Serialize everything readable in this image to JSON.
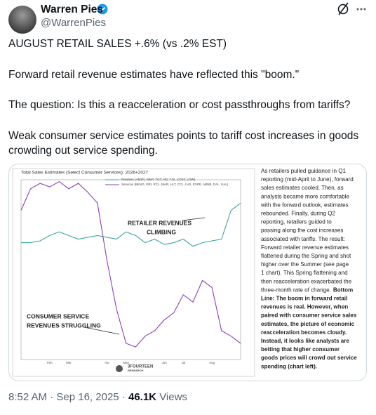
{
  "header": {
    "name": "Warren Pies",
    "handle": "@WarrenPies"
  },
  "tweet": {
    "paragraphs": [
      "AUGUST RETAIL SALES +.6% (vs .2% EST)",
      "Forward retail revenue estimates have reflected this \"boom.\"",
      "The question: Is this a reacceleration or cost passthroughs from tariffs?",
      "Weak consumer service estimates points to tariff cost increases in goods crowding out service spending."
    ]
  },
  "chart_data": {
    "type": "line",
    "title": "Total Sales Estimates (Select Consumer Services): 2026+2027",
    "categories": [
      null,
      null,
      null,
      "Feb",
      null,
      "Mar",
      null,
      null,
      null,
      "Apr",
      null,
      "May",
      null,
      null,
      null,
      "Jun",
      null,
      "Jul",
      null,
      null,
      "Aug",
      null,
      null,
      null
    ],
    "ylim": [
      0,
      100
    ],
    "series": [
      {
        "name": "Retailers (AMZN, WMT, TGT, HD, TJX, COST, LOW)",
        "color": "#3aa6a6",
        "values": [
          65,
          65,
          66,
          69,
          71,
          69,
          67,
          68,
          69,
          68,
          67,
          71,
          69,
          65,
          67,
          64,
          65,
          67,
          63,
          65,
          66,
          67,
          83,
          87
        ]
      },
      {
        "name": "Services (BKNG, DRI, RCL, MAR, HLT, CCL, LVS, EXPE, ABNB, DAL, UAL)",
        "color": "#8a3fb5",
        "values": [
          83,
          95,
          98,
          96,
          99,
          95,
          98,
          93,
          87,
          55,
          28,
          9,
          7,
          13,
          16,
          22,
          26,
          36,
          32,
          44,
          40,
          16,
          13,
          9
        ]
      }
    ],
    "annotations": [
      [
        "RETAILER REVENUES",
        "CLIMBING"
      ],
      [
        "CONSUMER SERVICE",
        "REVENUES STRUGGLING"
      ]
    ],
    "source": [
      "3FOURTEEN",
      "RESEARCH"
    ]
  },
  "side_note": {
    "lines": [
      [
        {
          "text": "As retailers pulled guidance in Q1",
          "bold": false
        }
      ],
      [
        {
          "text": "reporting (mid-April to June), forward",
          "bold": false
        }
      ],
      [
        {
          "text": "sales estimates cooled. Then, as",
          "bold": false
        }
      ],
      [
        {
          "text": "analysts became more comfortable",
          "bold": false
        }
      ],
      [
        {
          "text": "with the forward outlook, estimates",
          "bold": false
        }
      ],
      [
        {
          "text": "rebounded. Finally, during Q2",
          "bold": false
        }
      ],
      [
        {
          "text": "reporting, retailers guided to",
          "bold": false
        }
      ],
      [
        {
          "text": "passing along the cost increases",
          "bold": false
        }
      ],
      [
        {
          "text": "associated with tariffs. The result:",
          "bold": false
        }
      ],
      [
        {
          "text": "Forward retailer revenue estimates",
          "bold": false
        }
      ],
      [
        {
          "text": "flattened during the Spring and shot",
          "bold": false
        }
      ],
      [
        {
          "text": "higher over the Summer (see page",
          "bold": false
        }
      ],
      [
        {
          "text": "1 chart). This Spring flattening and",
          "bold": false
        }
      ],
      [
        {
          "text": "then reacceleration exacerbated the",
          "bold": false
        }
      ],
      [
        {
          "text": "three-month rate of change.",
          "bold": false
        },
        {
          "text": "Bottom",
          "bold": true
        }
      ],
      [
        {
          "text": "Line: The boom in forward retail",
          "bold": true
        }
      ],
      [
        {
          "text": "revenues is real. However, when",
          "bold": true
        }
      ],
      [
        {
          "text": "paired with consumer service sales",
          "bold": true
        }
      ],
      [
        {
          "text": "estimates, the picture of economic",
          "bold": true
        }
      ],
      [
        {
          "text": "reacceleration becomes cloudy.",
          "bold": true
        }
      ],
      [
        {
          "text": "Instead, it looks like analysts are",
          "bold": true
        }
      ],
      [
        {
          "text": "betting that higher consumer",
          "bold": true
        }
      ],
      [
        {
          "text": "goods prices will crowd out service",
          "bold": true
        }
      ],
      [
        {
          "text": "spending (chart left).",
          "bold": true
        }
      ]
    ]
  },
  "footer": {
    "time": "8:52 AM",
    "separator": "·",
    "date": "Sep 16, 2025",
    "views": "46.1K",
    "views_label": "Views"
  }
}
